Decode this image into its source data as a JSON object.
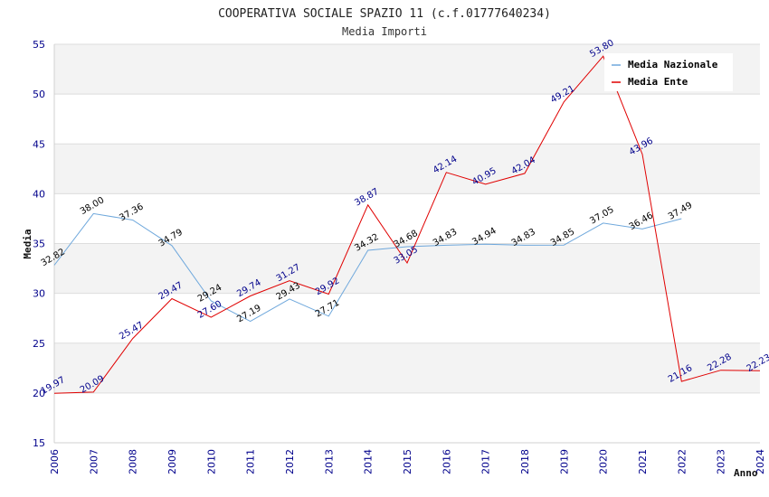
{
  "chart_data": {
    "type": "line",
    "title": "COOPERATIVA SOCIALE SPAZIO 11 (c.f.01777640234)",
    "subtitle": "Media Importi",
    "xlabel": "Anno",
    "ylabel": "Media",
    "ylim": [
      15,
      55
    ],
    "yticks": [
      "15",
      "20",
      "25",
      "30",
      "35",
      "40",
      "45",
      "50",
      "55"
    ],
    "categories": [
      "2006",
      "2007",
      "2008",
      "2009",
      "2010",
      "2011",
      "2012",
      "2013",
      "2014",
      "2015",
      "2016",
      "2017",
      "2018",
      "2019",
      "2020",
      "2021",
      "2022",
      "2023",
      "2024"
    ],
    "legend_position": "top-right",
    "series": [
      {
        "name": "Media Nazionale",
        "color": "#6fa8dc",
        "values": [
          32.82,
          38.0,
          37.36,
          34.79,
          29.24,
          27.19,
          29.43,
          27.71,
          34.32,
          34.68,
          34.83,
          34.94,
          34.83,
          34.85,
          37.05,
          36.46,
          37.49,
          null,
          null
        ],
        "labels": [
          "32.82",
          "38.00",
          "37.36",
          "34.79",
          "29.24",
          "27.19",
          "29.43",
          "27.71",
          "34.32",
          "34.68",
          "34.83",
          "34.94",
          "34.83",
          "34.85",
          "37.05",
          "36.46",
          "37.49",
          null,
          null
        ]
      },
      {
        "name": "Media Ente",
        "color": "#e00000",
        "values": [
          19.97,
          20.09,
          25.47,
          29.47,
          27.6,
          29.74,
          31.27,
          29.92,
          38.87,
          33.05,
          42.14,
          40.95,
          42.04,
          49.21,
          53.8,
          43.96,
          21.16,
          22.28,
          22.23
        ],
        "labels": [
          "19.97",
          "20.09",
          "25.47",
          "29.47",
          "27.60",
          "29.74",
          "31.27",
          "29.92",
          "38.87",
          "33.05",
          "42.14",
          "40.95",
          "42.04",
          "49.21",
          "53.80",
          "43.96",
          "21.16",
          "22.28",
          "22.23"
        ]
      }
    ]
  }
}
